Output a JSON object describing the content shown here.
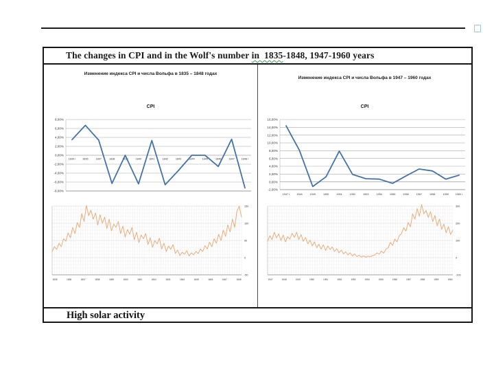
{
  "document": {
    "title_pre": "The changes in CPI and in the Wolf's number ",
    "title_marked": "in  1835",
    "title_post": "-1848, 1947-1960 years",
    "footer": "High solar activity",
    "colors": {
      "cpi_line": "#4472a8",
      "wolf_line": "#e9ad7b",
      "grid_major": "#a8a8a8",
      "grid_fine": "#ececec",
      "marker_wave": "#3f9e57",
      "anchor_blue": "#9dc3e6",
      "border_black": "#161616"
    }
  },
  "panels": [
    {
      "heading": "Изменение индекса CPI и числа Вольфа в 1835 – 1848 годах"
    },
    {
      "heading": "Изменение индекса CPI и числа Вольфа в 1947 – 1960  годах"
    }
  ],
  "chart_data": [
    {
      "type": "line",
      "title": "CPI",
      "period": "1835-1848",
      "categories": [
        "1835 г",
        "1836",
        "1837",
        "1838",
        "1839",
        "1840",
        "1841",
        "1842",
        "1843",
        "1844",
        "1845",
        "1846",
        "1847",
        "1848 г"
      ],
      "values": [
        3.5,
        6.7,
        3.4,
        -6.3,
        0.0,
        -6.4,
        3.3,
        -6.6,
        -3.4,
        0.0,
        0.0,
        -2.5,
        3.6,
        -7.3
      ],
      "ylim": [
        -8,
        8
      ],
      "yticks": {
        "values": [
          8,
          6,
          4,
          2,
          0,
          -2,
          -4,
          -6,
          -8
        ],
        "labels": [
          "8,00%",
          "6,00%",
          "4,00%",
          "2,00%",
          "0,00%",
          "-2,00%",
          "-4,00%",
          "-6,00%",
          "-8,00%"
        ]
      },
      "x_label_position": "zero-line",
      "y_label_side": "left",
      "grid": "horizontal",
      "color": "#4472a8"
    },
    {
      "type": "line",
      "title": "",
      "series_name": "Wolf number",
      "period": "1835-1848",
      "categories": [
        "1835",
        "1836",
        "1837",
        "1838",
        "1839",
        "1840",
        "1841",
        "1842",
        "1843",
        "1844",
        "1845",
        "1846",
        "1847",
        "1848"
      ],
      "values": [
        18,
        32,
        24,
        42,
        32,
        55,
        48,
        72,
        58,
        88,
        70,
        102,
        88,
        128,
        105,
        152,
        122,
        138,
        112,
        130,
        95,
        125,
        100,
        118,
        85,
        112,
        78,
        98,
        88,
        105,
        70,
        92,
        60,
        82,
        68,
        88,
        52,
        74,
        44,
        66,
        55,
        70,
        38,
        58,
        30,
        50,
        40,
        56,
        25,
        42,
        18,
        34,
        24,
        38,
        12,
        22,
        6,
        16,
        10,
        20,
        5,
        14,
        8,
        18,
        12,
        25,
        18,
        35,
        25,
        45,
        32,
        55,
        42,
        68,
        50,
        80,
        62,
        95,
        75,
        112,
        88,
        135,
        150,
        118
      ],
      "ylim": [
        -50,
        150
      ],
      "yticks": {
        "values": [
          150,
          100,
          50,
          0,
          -50
        ],
        "labels": [
          "150",
          "100",
          "50",
          "0",
          "-50"
        ]
      },
      "x_label_position": "bottom",
      "y_label_side": "right",
      "grid": "fine",
      "color": "#e9ad7b"
    },
    {
      "type": "line",
      "title": "CPI",
      "period": "1947-1960",
      "categories": [
        "1947 г",
        "1948",
        "1949",
        "1950",
        "1951",
        "1952",
        "1953",
        "1954",
        "1955",
        "1956",
        "1957",
        "1958",
        "1959",
        "1960 г"
      ],
      "values": [
        14.4,
        8.1,
        -1.2,
        1.3,
        7.9,
        1.9,
        0.8,
        0.7,
        -0.4,
        1.5,
        3.3,
        2.8,
        0.7,
        1.7
      ],
      "ylim": [
        -2,
        16
      ],
      "yticks": {
        "values": [
          16,
          14,
          12,
          10,
          8,
          6,
          4,
          2,
          0,
          -2
        ],
        "labels": [
          "16,00%",
          "14,00%",
          "12,00%",
          "10,00%",
          "8,00%",
          "6,00%",
          "4,00%",
          "2,00%",
          "0,00%",
          "-2,00%"
        ]
      },
      "x_label_position": "bottom",
      "y_label_side": "left",
      "grid": "horizontal",
      "color": "#4472a8"
    },
    {
      "type": "line",
      "title": "",
      "series_name": "Wolf number",
      "period": "1947-1960",
      "categories": [
        "1947",
        "1948",
        "1949",
        "1950",
        "1951",
        "1952",
        "1953",
        "1954",
        "1955",
        "1956",
        "1957",
        "1958",
        "1959",
        "1960"
      ],
      "values": [
        95,
        128,
        105,
        148,
        115,
        138,
        100,
        132,
        92,
        122,
        108,
        142,
        118,
        148,
        105,
        135,
        95,
        118,
        80,
        102,
        68,
        92,
        58,
        78,
        50,
        75,
        42,
        68,
        48,
        62,
        36,
        52,
        28,
        44,
        22,
        34,
        16,
        28,
        10,
        22,
        6,
        14,
        3,
        10,
        2,
        8,
        5,
        12,
        15,
        28,
        20,
        38,
        26,
        48,
        58,
        88,
        72,
        108,
        92,
        128,
        140,
        175,
        155,
        205,
        180,
        255,
        225,
        285,
        240,
        310,
        255,
        275,
        235,
        268,
        210,
        245,
        185,
        225,
        165,
        195,
        145,
        180,
        135,
        160
      ],
      "ylim": [
        -100,
        300
      ],
      "yticks": {
        "values": [
          300,
          200,
          100,
          0,
          -100
        ],
        "labels": [
          "300",
          "200",
          "100",
          "0",
          "-100"
        ]
      },
      "x_label_position": "bottom",
      "y_label_side": "right",
      "grid": "fine",
      "color": "#e9ad7b"
    }
  ]
}
